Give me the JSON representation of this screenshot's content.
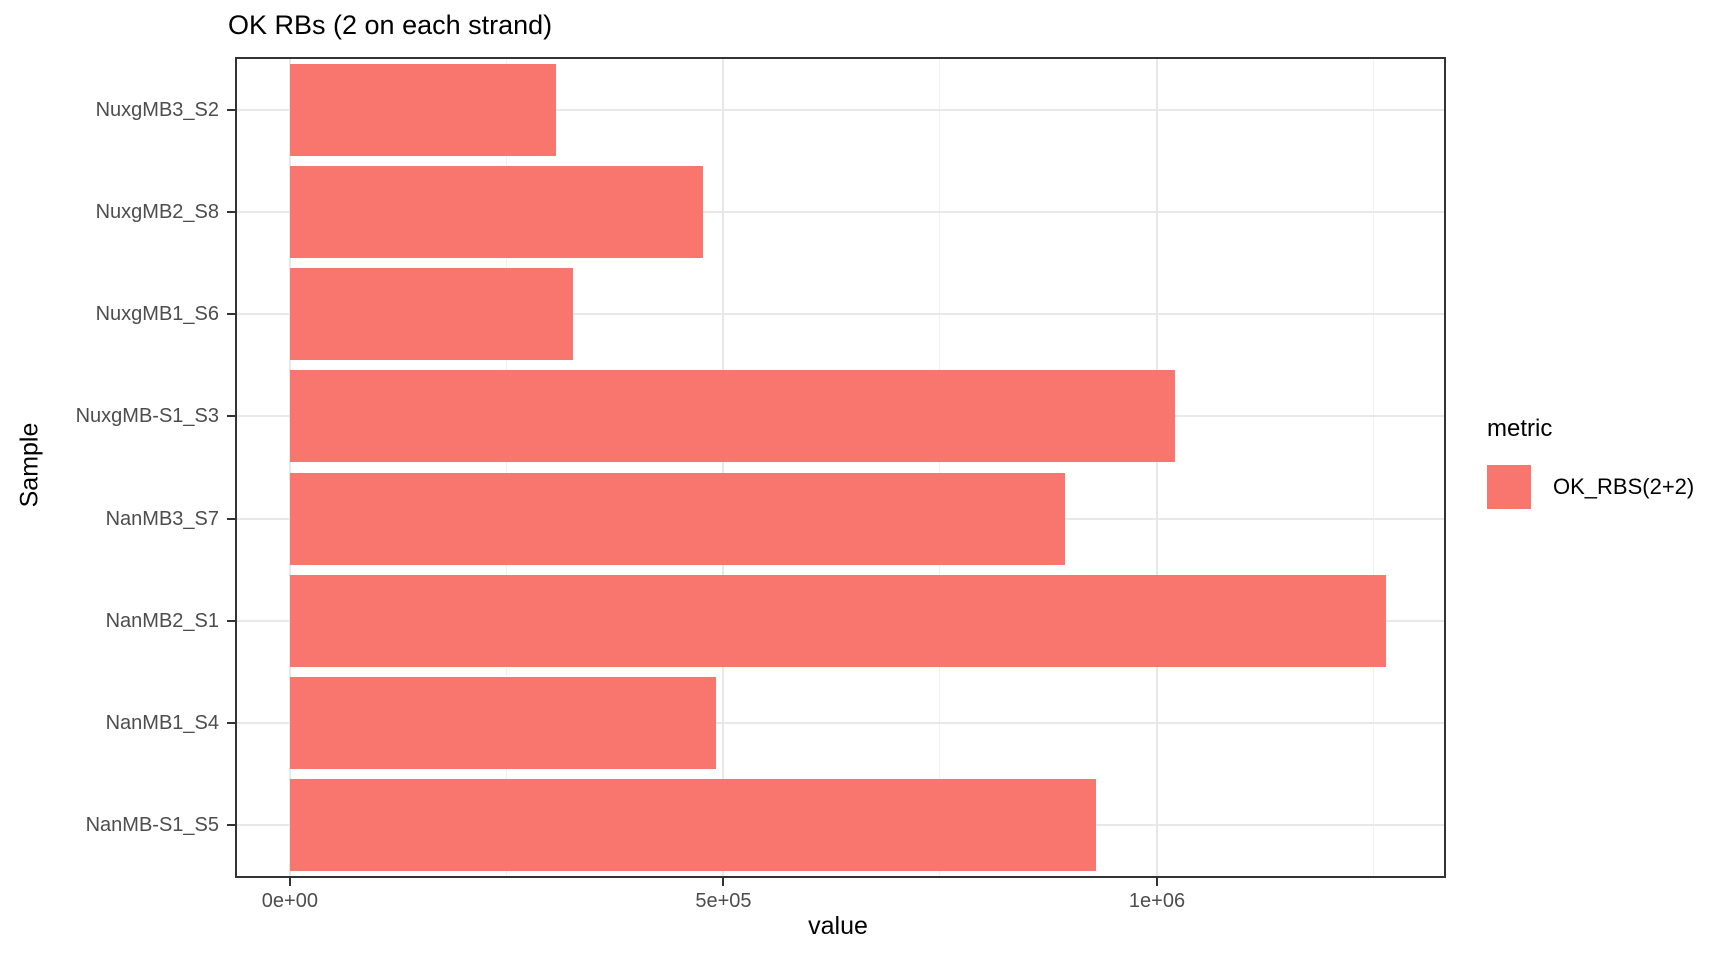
{
  "figure": {
    "background": "#FFFFFF"
  },
  "chart_data": {
    "type": "bar",
    "orientation": "horizontal",
    "title": "OK RBs (2 on each strand)",
    "xlabel": "value",
    "ylabel": "Sample",
    "categories": [
      "NuxgMB3_S2",
      "NuxgMB2_S8",
      "NuxgMB1_S6",
      "NuxgMB-S1_S3",
      "NanMB3_S7",
      "NanMB2_S1",
      "NanMB1_S4",
      "NanMB-S1_S5"
    ],
    "values": [
      307000,
      476000,
      326000,
      1021000,
      894000,
      1264000,
      491000,
      930000
    ],
    "series": [
      {
        "name": "OK_RBS(2+2)",
        "values": [
          307000,
          476000,
          326000,
          1021000,
          894000,
          1264000,
          491000,
          930000
        ]
      }
    ],
    "xlim": [
      -61000,
      1331000
    ],
    "x_major_ticks": [
      {
        "value": 0,
        "label": "0e+00"
      },
      {
        "value": 500000,
        "label": "5e+05"
      },
      {
        "value": 1000000,
        "label": "1e+06"
      }
    ],
    "x_minor_ticks": [
      250000,
      750000,
      1250000
    ],
    "bar_width_fraction": 0.9,
    "grid": true,
    "legend": {
      "title": "metric",
      "position": "right",
      "entries": [
        {
          "label": "OK_RBS(2+2)",
          "color": "#F8766D"
        }
      ]
    },
    "colors": {
      "bar": "#F8766D",
      "grid_major": "#E8E8E8",
      "grid_minor": "#F1F1F1",
      "panel_border": "#333333",
      "tick_mark": "#333333",
      "tick_label": "#4D4D4D",
      "axis_title": "#000000"
    }
  }
}
